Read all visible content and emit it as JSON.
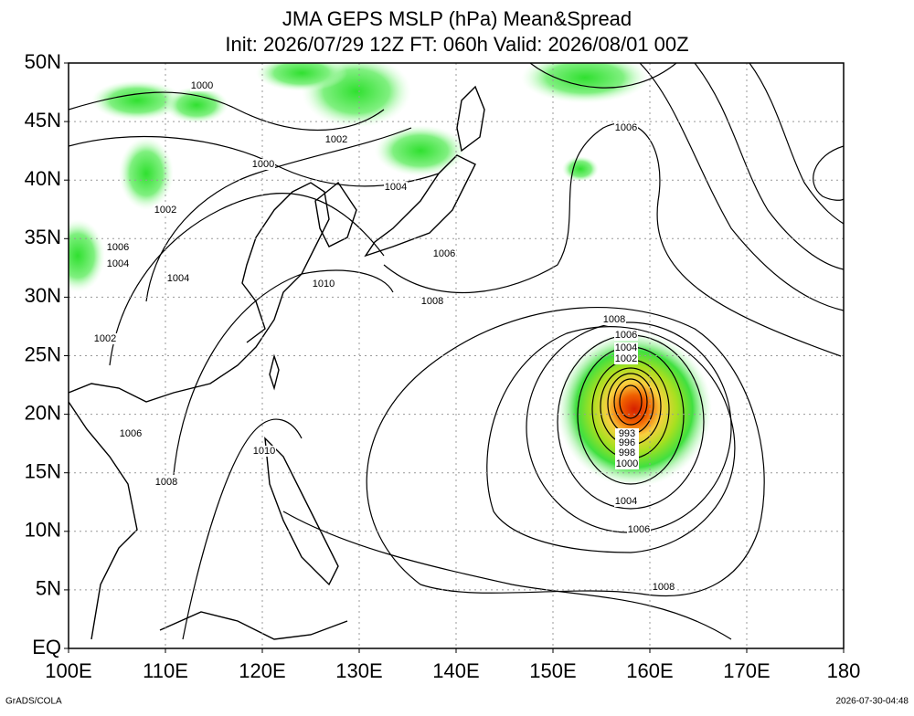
{
  "title": "JMA GEPS MSLP (hPa) Mean&Spread",
  "subtitle": "Init: 2026/07/29 12Z  FT: 060h  Valid: 2026/08/01 00Z",
  "xlim": [
    100,
    180
  ],
  "ylim": [
    0,
    50
  ],
  "xticks": [
    {
      "value": 100,
      "label": "100E"
    },
    {
      "value": 110,
      "label": "110E"
    },
    {
      "value": 120,
      "label": "120E"
    },
    {
      "value": 130,
      "label": "130E"
    },
    {
      "value": 140,
      "label": "140E"
    },
    {
      "value": 150,
      "label": "150E"
    },
    {
      "value": 160,
      "label": "160E"
    },
    {
      "value": 170,
      "label": "170E"
    },
    {
      "value": 180,
      "label": "180"
    }
  ],
  "yticks": [
    {
      "value": 0,
      "label": "EQ"
    },
    {
      "value": 5,
      "label": "5N"
    },
    {
      "value": 10,
      "label": "10N"
    },
    {
      "value": 15,
      "label": "15N"
    },
    {
      "value": 20,
      "label": "20N"
    },
    {
      "value": 25,
      "label": "25N"
    },
    {
      "value": 30,
      "label": "30N"
    },
    {
      "value": 35,
      "label": "35N"
    },
    {
      "value": 40,
      "label": "40N"
    },
    {
      "value": 45,
      "label": "45N"
    },
    {
      "value": 50,
      "label": "50N"
    }
  ],
  "grid": true,
  "contour_labels": [
    1000,
    1002,
    1000,
    1004,
    1002,
    1006,
    1004,
    1004,
    1010,
    1006,
    1008,
    1002,
    1006,
    1008,
    1006,
    1004,
    1002,
    1006,
    1010,
    1008,
    993,
    996,
    998,
    1000,
    1004,
    1006,
    1008
  ],
  "footer_left": "GrADS/COLA",
  "footer_right": "2026-07-30-04:48"
}
